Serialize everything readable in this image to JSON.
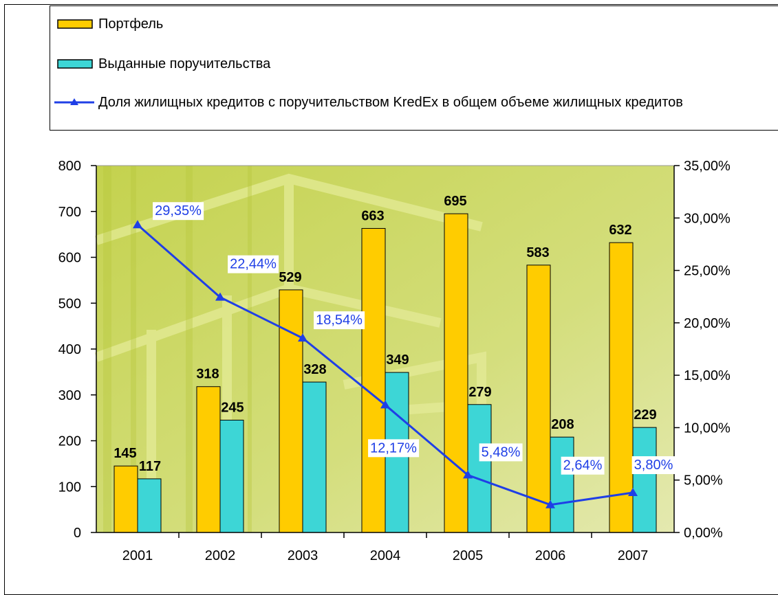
{
  "chart_data": {
    "type": "bar",
    "categories": [
      "2001",
      "2002",
      "2003",
      "2004",
      "2005",
      "2006",
      "2007"
    ],
    "series": [
      {
        "name": "Портфель",
        "color": "#ffcc00",
        "values": [
          145,
          318,
          529,
          663,
          695,
          583,
          632
        ]
      },
      {
        "name": "Выданные поручительства",
        "color": "#3dd6d6",
        "values": [
          117,
          245,
          328,
          349,
          279,
          208,
          229
        ]
      },
      {
        "name": "Доля жилищных кредитов с поручительством KredEx в общем объеме жилищных кредитов",
        "color": "#1f3fe6",
        "type": "line",
        "axis": "y2",
        "values": [
          29.35,
          22.44,
          18.54,
          12.17,
          5.48,
          2.64,
          3.8
        ],
        "value_labels": [
          "29,35%",
          "22,44%",
          "18,54%",
          "12,17%",
          "5,48%",
          "2,64%",
          "3,80%"
        ]
      }
    ],
    "ylim": [
      0,
      800
    ],
    "yticks": [
      0,
      100,
      200,
      300,
      400,
      500,
      600,
      700,
      800
    ],
    "y2lim": [
      0,
      35
    ],
    "y2ticks": [
      {
        "value": 0,
        "label": "0,00%"
      },
      {
        "value": 5,
        "label": "5,00%"
      },
      {
        "value": 10,
        "label": "10,00%"
      },
      {
        "value": 15,
        "label": "15,00%"
      },
      {
        "value": 20,
        "label": "20,00%"
      },
      {
        "value": 25,
        "label": "25,00%"
      },
      {
        "value": 30,
        "label": "30,00%"
      },
      {
        "value": 35,
        "label": "35,00%"
      }
    ],
    "legend": "top"
  }
}
